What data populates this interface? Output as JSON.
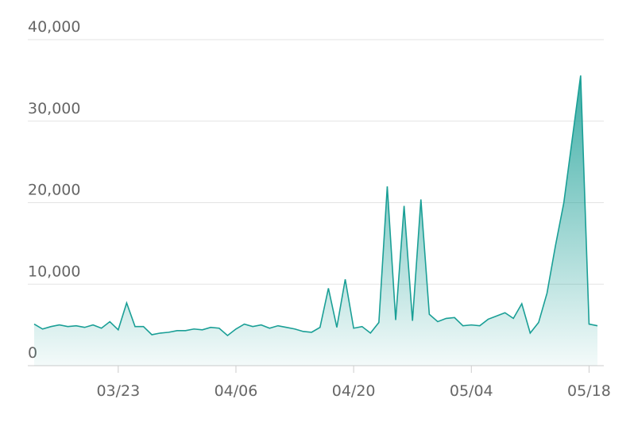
{
  "chart_data": {
    "type": "area",
    "categories": [
      null,
      null,
      null,
      null,
      null,
      null,
      null,
      null,
      null,
      null,
      "03/23",
      null,
      null,
      null,
      null,
      null,
      null,
      null,
      null,
      null,
      null,
      null,
      null,
      null,
      "04/06",
      null,
      null,
      null,
      null,
      null,
      null,
      null,
      null,
      null,
      null,
      null,
      null,
      null,
      "04/20",
      null,
      null,
      null,
      null,
      null,
      null,
      null,
      null,
      null,
      null,
      null,
      null,
      null,
      "05/04",
      null,
      null,
      null,
      null,
      null,
      null,
      null,
      null,
      null,
      null,
      null,
      null,
      null,
      "05/18",
      null
    ],
    "values": [
      5100,
      4500,
      4800,
      5000,
      4800,
      4900,
      4700,
      5000,
      4600,
      5400,
      4400,
      7700,
      4800,
      4800,
      3800,
      4000,
      4100,
      4300,
      4300,
      4500,
      4400,
      4700,
      4600,
      3700,
      4500,
      5100,
      4800,
      5000,
      4600,
      4900,
      4700,
      4500,
      4200,
      4100,
      4700,
      9500,
      4700,
      10600,
      4600,
      4800,
      4000,
      5300,
      22000,
      5600,
      19600,
      5500,
      20400,
      6300,
      5400,
      5800,
      5900,
      4900,
      5000,
      4900,
      5700,
      6100,
      6500,
      5800,
      7600,
      4000,
      5300,
      8900,
      14700,
      20000,
      27800,
      35600,
      5100,
      4900
    ],
    "color": "#1a9f96",
    "ylim": [
      0,
      40000
    ],
    "yticks": [
      0,
      {
        "value": 10000,
        "label": "10,000"
      },
      {
        "value": 20000,
        "label": "20,000"
      },
      {
        "value": 30000,
        "label": "30,000"
      },
      {
        "value": 40000,
        "label": "40,000"
      }
    ],
    "grid": true
  }
}
